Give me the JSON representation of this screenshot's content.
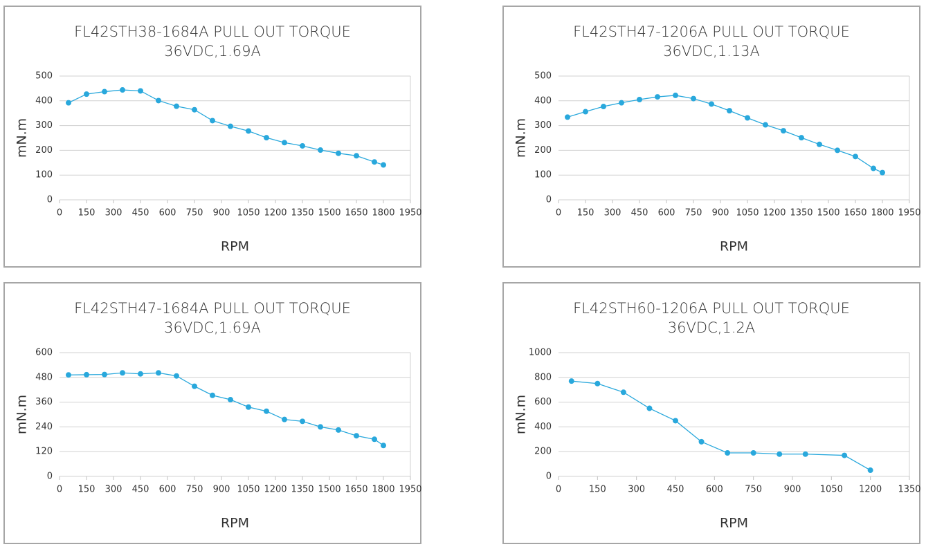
{
  "chart_data": [
    {
      "type": "line",
      "title": "FL42STH38-1684A PULL OUT TORQUE",
      "subtitle": "36VDC,1.69A",
      "x_label": "RPM",
      "y_label": "mN.m",
      "x": [
        50,
        150,
        250,
        350,
        450,
        550,
        650,
        750,
        850,
        950,
        1050,
        1150,
        1250,
        1350,
        1450,
        1550,
        1650,
        1750,
        1800
      ],
      "series": [
        {
          "color": "#29a8dc",
          "values": [
            392,
            427,
            437,
            444,
            440,
            401,
            378,
            364,
            320,
            297,
            278,
            251,
            231,
            218,
            201,
            188,
            178,
            153,
            141
          ]
        }
      ],
      "xlim": [
        0,
        1950
      ],
      "xticks": [
        0,
        150,
        300,
        450,
        600,
        750,
        900,
        1050,
        1200,
        1350,
        1500,
        1650,
        1800,
        1950
      ],
      "ylim": [
        0,
        500
      ],
      "yticks": [
        0,
        100,
        200,
        300,
        400,
        500
      ],
      "grid": true
    },
    {
      "type": "line",
      "title": "FL42STH47-1206A PULL OUT TORQUE",
      "subtitle": "36VDC,1.13A",
      "x_label": "RPM",
      "y_label": "mN.m",
      "x": [
        50,
        150,
        250,
        350,
        450,
        550,
        650,
        750,
        850,
        950,
        1050,
        1150,
        1250,
        1350,
        1450,
        1550,
        1650,
        1750,
        1800
      ],
      "series": [
        {
          "color": "#29a8dc",
          "values": [
            334,
            356,
            377,
            392,
            405,
            416,
            422,
            409,
            387,
            360,
            331,
            303,
            279,
            251,
            224,
            200,
            175,
            127,
            110
          ]
        }
      ],
      "xlim": [
        0,
        1950
      ],
      "xticks": [
        0,
        150,
        300,
        450,
        600,
        750,
        900,
        1050,
        1200,
        1350,
        1500,
        1650,
        1800,
        1950
      ],
      "ylim": [
        0,
        500
      ],
      "yticks": [
        0,
        100,
        200,
        300,
        400,
        500
      ],
      "grid": true
    },
    {
      "type": "line",
      "title": "FL42STH47-1684A PULL OUT TORQUE",
      "subtitle": "36VDC,1.69A",
      "x_label": "RPM",
      "y_label": "mN.m",
      "x": [
        50,
        150,
        250,
        350,
        450,
        550,
        650,
        750,
        850,
        950,
        1050,
        1150,
        1250,
        1350,
        1450,
        1550,
        1650,
        1750,
        1800
      ],
      "series": [
        {
          "color": "#29a8dc",
          "values": [
            492,
            493,
            494,
            502,
            497,
            502,
            487,
            437,
            393,
            372,
            336,
            316,
            276,
            267,
            240,
            225,
            197,
            180,
            150
          ]
        }
      ],
      "xlim": [
        0,
        1950
      ],
      "xticks": [
        0,
        150,
        300,
        450,
        600,
        750,
        900,
        1050,
        1200,
        1350,
        1500,
        1650,
        1800,
        1950
      ],
      "ylim": [
        0,
        600
      ],
      "yticks": [
        0,
        120,
        240,
        360,
        480,
        600
      ],
      "grid": true
    },
    {
      "type": "line",
      "title": "FL42STH60-1206A PULL OUT TORQUE",
      "subtitle": "36VDC,1.2A",
      "x_label": "RPM",
      "y_label": "mN.m",
      "x": [
        50,
        150,
        250,
        350,
        450,
        550,
        650,
        750,
        850,
        950,
        1100,
        1200
      ],
      "series": [
        {
          "color": "#29a8dc",
          "values": [
            770,
            750,
            680,
            550,
            450,
            280,
            190,
            190,
            180,
            180,
            170,
            50
          ]
        }
      ],
      "xlim": [
        0,
        1350
      ],
      "xticks": [
        0,
        150,
        300,
        450,
        600,
        750,
        900,
        1050,
        1200,
        1350
      ],
      "ylim": [
        0,
        1000
      ],
      "yticks": [
        0,
        200,
        400,
        600,
        800,
        1000
      ],
      "grid": true
    }
  ]
}
